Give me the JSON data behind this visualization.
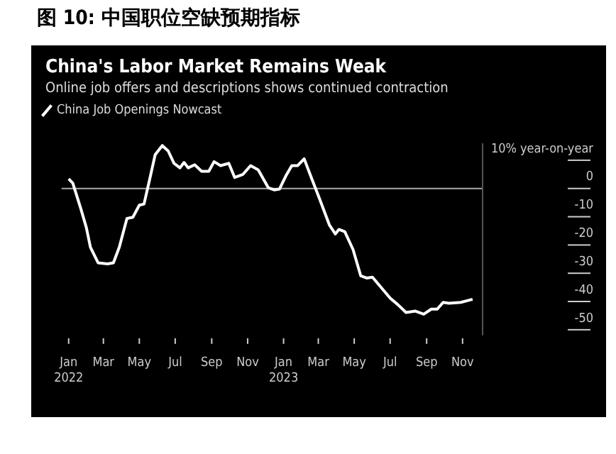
{
  "chart_data": {
    "type": "line",
    "title": "China's Labor Market Remains Weak",
    "subtitle": "Online job offers and descriptions shows continued contraction",
    "annotations": [
      "图 10: 中国职位空缺预期指标"
    ],
    "legend": "top left",
    "grid": false,
    "marker": "none",
    "line_style": "solid",
    "series": [
      {
        "name": "China Job Openings Nowcast",
        "color": "#ffffff",
        "x": [
          "2022-01-01",
          "2022-01-08",
          "2022-01-21",
          "2022-01-31",
          "2022-02-07",
          "2022-02-20",
          "2022-03-08",
          "2022-03-18",
          "2022-03-28",
          "2022-04-10",
          "2022-04-20",
          "2022-05-01",
          "2022-05-09",
          "2022-05-18",
          "2022-05-28",
          "2022-06-09",
          "2022-06-19",
          "2022-06-29",
          "2022-07-09",
          "2022-07-16",
          "2022-07-23",
          "2022-08-03",
          "2022-08-15",
          "2022-08-27",
          "2022-09-05",
          "2022-09-16",
          "2022-09-30",
          "2022-10-10",
          "2022-10-24",
          "2022-11-06",
          "2022-11-19",
          "2022-12-06",
          "2022-12-16",
          "2022-12-25",
          "2023-01-05",
          "2023-01-15",
          "2023-01-25",
          "2023-02-05",
          "2023-02-18",
          "2023-03-03",
          "2023-03-20",
          "2023-03-30",
          "2023-04-05",
          "2023-04-15",
          "2023-04-29",
          "2023-05-12",
          "2023-05-22",
          "2023-06-01",
          "2023-06-18",
          "2023-07-01",
          "2023-07-14",
          "2023-07-28",
          "2023-08-13",
          "2023-08-27",
          "2023-09-09",
          "2023-09-19",
          "2023-09-29",
          "2023-10-09",
          "2023-10-29",
          "2023-11-18"
        ],
        "values": [
          3.4,
          1.9,
          -6.7,
          -13.8,
          -20.8,
          -26.3,
          -26.7,
          -26.3,
          -20.8,
          -10.6,
          -10.2,
          -5.9,
          -5.5,
          2.7,
          12,
          15.2,
          13.3,
          8.9,
          7.3,
          9.2,
          7.3,
          8.4,
          6.1,
          6.1,
          9.5,
          8.1,
          8.9,
          3.9,
          5,
          8.1,
          6.6,
          0.3,
          -0.5,
          -0.2,
          4.5,
          8.1,
          8.1,
          10.5,
          3.4,
          -3.6,
          -13,
          -16.1,
          -14.5,
          -15.3,
          -21.6,
          -30.9,
          -31.7,
          -31.4,
          -35.6,
          -38.8,
          -41.1,
          -43.9,
          -43.4,
          -44.5,
          -42.7,
          -42.7,
          -40.3,
          -40.6,
          -40.3,
          -39.2
        ]
      }
    ],
    "xlim": [
      "2021-12-20",
      "2023-12-05"
    ],
    "xticks": [
      {
        "value": "2022-01-01",
        "label": "Jan 2022"
      },
      {
        "value": "2022-03-01",
        "label": "Mar"
      },
      {
        "value": "2022-05-01",
        "label": "May"
      },
      {
        "value": "2022-07-01",
        "label": "Jul"
      },
      {
        "value": "2022-09-01",
        "label": "Sep"
      },
      {
        "value": "2022-11-01",
        "label": "Nov"
      },
      {
        "value": "2023-01-01",
        "label": "Jan 2023"
      },
      {
        "value": "2023-03-01",
        "label": "Mar"
      },
      {
        "value": "2023-05-01",
        "label": "May"
      },
      {
        "value": "2023-07-01",
        "label": "Jul"
      },
      {
        "value": "2023-09-01",
        "label": "Sep"
      },
      {
        "value": "2023-11-01",
        "label": "Nov"
      }
    ],
    "ylim": [
      -52,
      16
    ],
    "yticks": [
      {
        "value": 10,
        "label": "10% year-on-year"
      },
      0,
      -10,
      -20,
      -30,
      -40,
      -50
    ],
    "ref_lines": [
      {
        "axis": "y",
        "value": 0,
        "color": "#aaaaaa"
      }
    ]
  }
}
